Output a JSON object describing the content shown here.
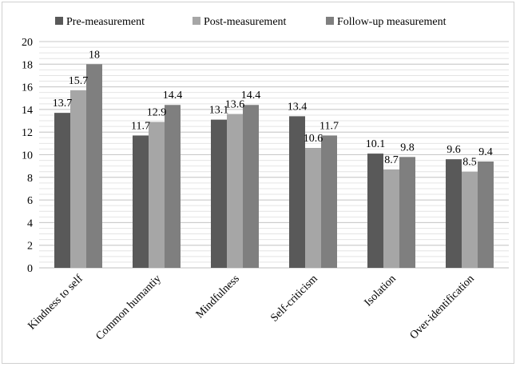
{
  "chart_data": {
    "type": "bar",
    "categories": [
      "Kindness to self",
      "Common humantiy",
      "Mindfulness",
      "Self-criticism",
      "Isolation",
      "Over-identification"
    ],
    "series": [
      {
        "name": "Pre-measurement",
        "values": [
          13.7,
          11.7,
          13.1,
          13.4,
          10.1,
          9.6
        ],
        "color": "#595959"
      },
      {
        "name": "Post-measurement",
        "values": [
          15.7,
          12.9,
          13.6,
          10.6,
          8.7,
          8.5
        ],
        "color": "#a6a6a6"
      },
      {
        "name": "Follow-up measurement",
        "values": [
          18,
          14.4,
          14.4,
          11.7,
          9.8,
          9.4
        ],
        "color": "#7f7f7f"
      }
    ],
    "ylim": [
      0,
      20
    ],
    "yticks": [
      0,
      2,
      4,
      6,
      8,
      10,
      12,
      14,
      16,
      18,
      20
    ],
    "legend": "top",
    "grid": true,
    "data_labels": true
  }
}
